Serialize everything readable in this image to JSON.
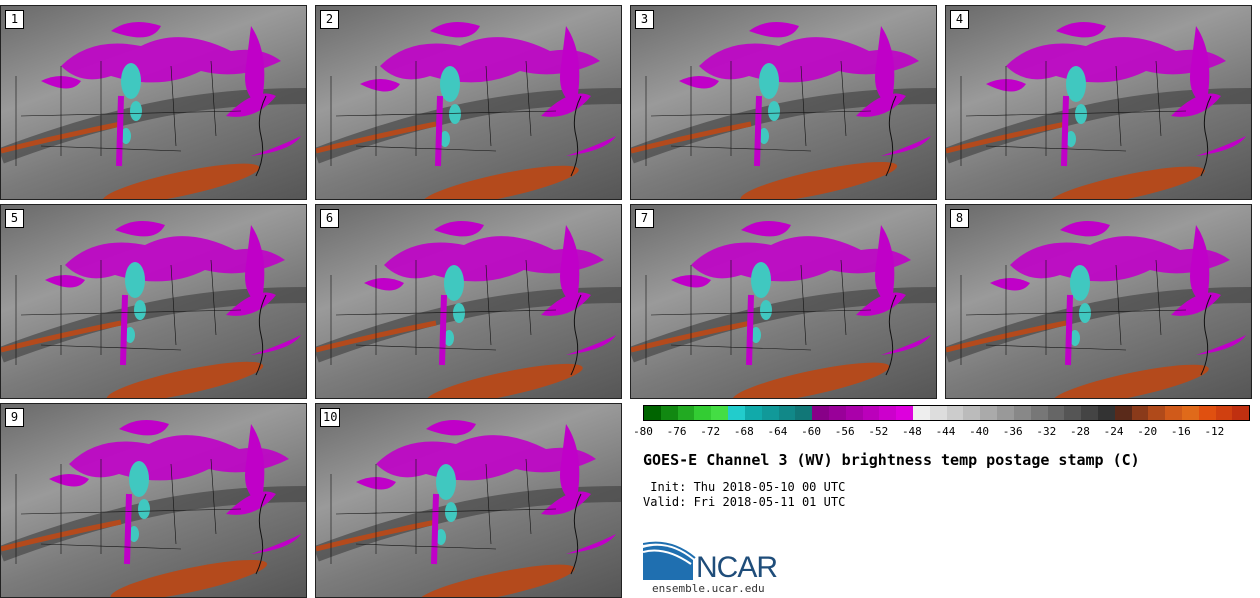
{
  "panels": [
    {
      "label": "1"
    },
    {
      "label": "2"
    },
    {
      "label": "3"
    },
    {
      "label": "4"
    },
    {
      "label": "5"
    },
    {
      "label": "6"
    },
    {
      "label": "7"
    },
    {
      "label": "8"
    },
    {
      "label": "9"
    },
    {
      "label": "10"
    }
  ],
  "colorbar": {
    "colors": [
      "#006400",
      "#118811",
      "#22aa22",
      "#33cc33",
      "#44dd44",
      "#22cccc",
      "#11aaaa",
      "#119999",
      "#118888",
      "#117777",
      "#880088",
      "#990099",
      "#aa00aa",
      "#bb00bb",
      "#cc00cc",
      "#dd00dd",
      "#eeeeee",
      "#dddddd",
      "#cccccc",
      "#bbbbbb",
      "#aaaaaa",
      "#999999",
      "#888888",
      "#777777",
      "#666666",
      "#555555",
      "#444444",
      "#333333",
      "#5a2a1a",
      "#8a3a1a",
      "#b04a1a",
      "#d05a1a",
      "#e06a1a",
      "#e05010",
      "#d04010",
      "#c03010"
    ],
    "ticks": [
      "-80",
      "-76",
      "-72",
      "-68",
      "-64",
      "-60",
      "-56",
      "-52",
      "-48",
      "-44",
      "-40",
      "-36",
      "-32",
      "-28",
      "-24",
      "-20",
      "-16",
      "-12"
    ]
  },
  "title": "GOES-E Channel 3 (WV) brightness temp postage stamp (C)",
  "init": " Init: Thu 2018-05-10 00 UTC",
  "valid": "Valid: Fri 2018-05-11 01 UTC",
  "logo_text": "NCAR",
  "site": "ensemble.ucar.edu"
}
